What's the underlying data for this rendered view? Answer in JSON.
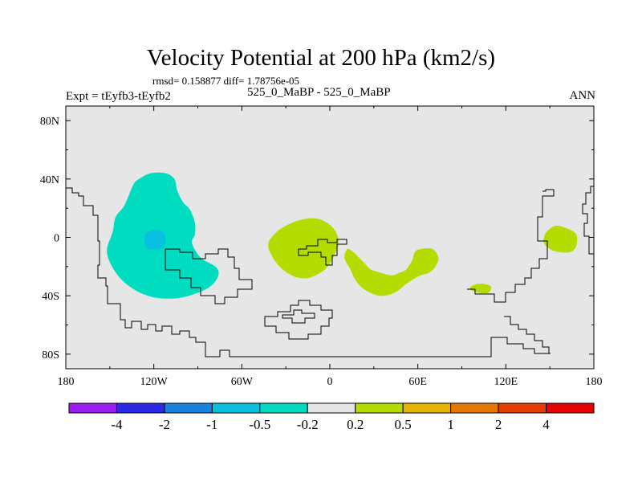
{
  "chart_data": {
    "type": "contour-map",
    "title": "Velocity Potential at 200 hPa (km2/s)",
    "stats_text": "rmsd= 0.158877 diff= 1.78756e-05",
    "left_label": "Expt = tEyfb3-tEyfb2",
    "center_label": "525_0_MaBP - 525_0_MaBP",
    "right_label": "ANN",
    "x_ticks": [
      {
        "value": -180,
        "label": "180"
      },
      {
        "value": -120,
        "label": "120W"
      },
      {
        "value": -60,
        "label": "60W"
      },
      {
        "value": 0,
        "label": "0"
      },
      {
        "value": 60,
        "label": "60E"
      },
      {
        "value": 120,
        "label": "120E"
      },
      {
        "value": 180,
        "label": "180"
      }
    ],
    "y_ticks": [
      {
        "value": 80,
        "label": "80N"
      },
      {
        "value": 40,
        "label": "40N"
      },
      {
        "value": 0,
        "label": "0"
      },
      {
        "value": -40,
        "label": "40S"
      },
      {
        "value": -80,
        "label": "80S"
      }
    ],
    "xlim": [
      -180,
      180
    ],
    "ylim": [
      -90,
      90
    ],
    "colorbar": {
      "colors": [
        "#9a1ef0",
        "#2a2ae6",
        "#1a80e0",
        "#0ac0e0",
        "#00dcc0",
        "#e6e6e6",
        "#b4dc00",
        "#e6b400",
        "#e67800",
        "#e63c00",
        "#e60000"
      ],
      "boundaries": [
        "-4",
        "-2",
        "-1",
        "-0.5",
        "-0.2",
        "0.2",
        "0.5",
        "1",
        "2",
        "4"
      ]
    },
    "regions": [
      {
        "name": "negative-anomaly-east-pacific",
        "level": "-0.5 to -0.2",
        "color": "#00dcc0",
        "polygon": [
          [
            -148,
            4
          ],
          [
            -152,
            -10
          ],
          [
            -146,
            -24
          ],
          [
            -136,
            -34
          ],
          [
            -124,
            -40
          ],
          [
            -110,
            -42
          ],
          [
            -96,
            -40
          ],
          [
            -82,
            -34
          ],
          [
            -76,
            -26
          ],
          [
            -78,
            -20
          ],
          [
            -88,
            -14
          ],
          [
            -94,
            -4
          ],
          [
            -92,
            2
          ],
          [
            -92,
            10
          ],
          [
            -94,
            16
          ],
          [
            -96,
            20
          ],
          [
            -100,
            24
          ],
          [
            -104,
            32
          ],
          [
            -106,
            40
          ],
          [
            -112,
            44
          ],
          [
            -122,
            44
          ],
          [
            -130,
            40
          ],
          [
            -134,
            36
          ],
          [
            -140,
            22
          ],
          [
            -146,
            14
          ]
        ]
      },
      {
        "name": "negative-core-east-pacific",
        "level": "-1 to -0.5",
        "color": "#0ac0e0",
        "polygon": [
          [
            -126,
            -4
          ],
          [
            -124,
            -8
          ],
          [
            -118,
            -8
          ],
          [
            -113,
            -6
          ],
          [
            -112,
            0
          ],
          [
            -114,
            4
          ],
          [
            -120,
            5
          ],
          [
            -126,
            2
          ]
        ]
      },
      {
        "name": "positive-anomaly-atlantic",
        "level": "0.2 to 0.5",
        "color": "#b4dc00",
        "polygon": [
          [
            -42,
            -6
          ],
          [
            -36,
            -18
          ],
          [
            -26,
            -26
          ],
          [
            -16,
            -28
          ],
          [
            -6,
            -24
          ],
          [
            0,
            -18
          ],
          [
            4,
            -10
          ],
          [
            6,
            -4
          ],
          [
            4,
            4
          ],
          [
            -2,
            10
          ],
          [
            -10,
            13
          ],
          [
            -20,
            12
          ],
          [
            -30,
            8
          ],
          [
            -38,
            2
          ]
        ]
      },
      {
        "name": "positive-anomaly-africa-indian",
        "level": "0.2 to 0.5",
        "color": "#b4dc00",
        "polygon": [
          [
            10,
            -14
          ],
          [
            14,
            -22
          ],
          [
            18,
            -30
          ],
          [
            24,
            -36
          ],
          [
            34,
            -40
          ],
          [
            44,
            -38
          ],
          [
            52,
            -32
          ],
          [
            58,
            -28
          ],
          [
            62,
            -26
          ],
          [
            68,
            -24
          ],
          [
            72,
            -20
          ],
          [
            74,
            -14
          ],
          [
            70,
            -8
          ],
          [
            62,
            -8
          ],
          [
            58,
            -10
          ],
          [
            56,
            -16
          ],
          [
            52,
            -22
          ],
          [
            48,
            -24
          ],
          [
            42,
            -26
          ],
          [
            34,
            -24
          ],
          [
            28,
            -22
          ],
          [
            24,
            -18
          ],
          [
            20,
            -14
          ],
          [
            16,
            -10
          ],
          [
            12,
            -8
          ]
        ]
      },
      {
        "name": "positive-anomaly-maritime",
        "level": "0.2 to 0.5",
        "color": "#b4dc00",
        "polygon": [
          [
            96,
            -34
          ],
          [
            100,
            -32
          ],
          [
            106,
            -32
          ],
          [
            110,
            -34
          ],
          [
            108,
            -38
          ],
          [
            102,
            -38
          ],
          [
            96,
            -36
          ]
        ]
      },
      {
        "name": "positive-anomaly-west-pacific",
        "level": "0.2 to 0.5",
        "color": "#b4dc00",
        "polygon": [
          [
            146,
            0
          ],
          [
            148,
            4
          ],
          [
            154,
            8
          ],
          [
            162,
            6
          ],
          [
            168,
            2
          ],
          [
            168,
            -6
          ],
          [
            164,
            -10
          ],
          [
            156,
            -10
          ],
          [
            150,
            -8
          ],
          [
            146,
            -4
          ]
        ]
      }
    ]
  }
}
